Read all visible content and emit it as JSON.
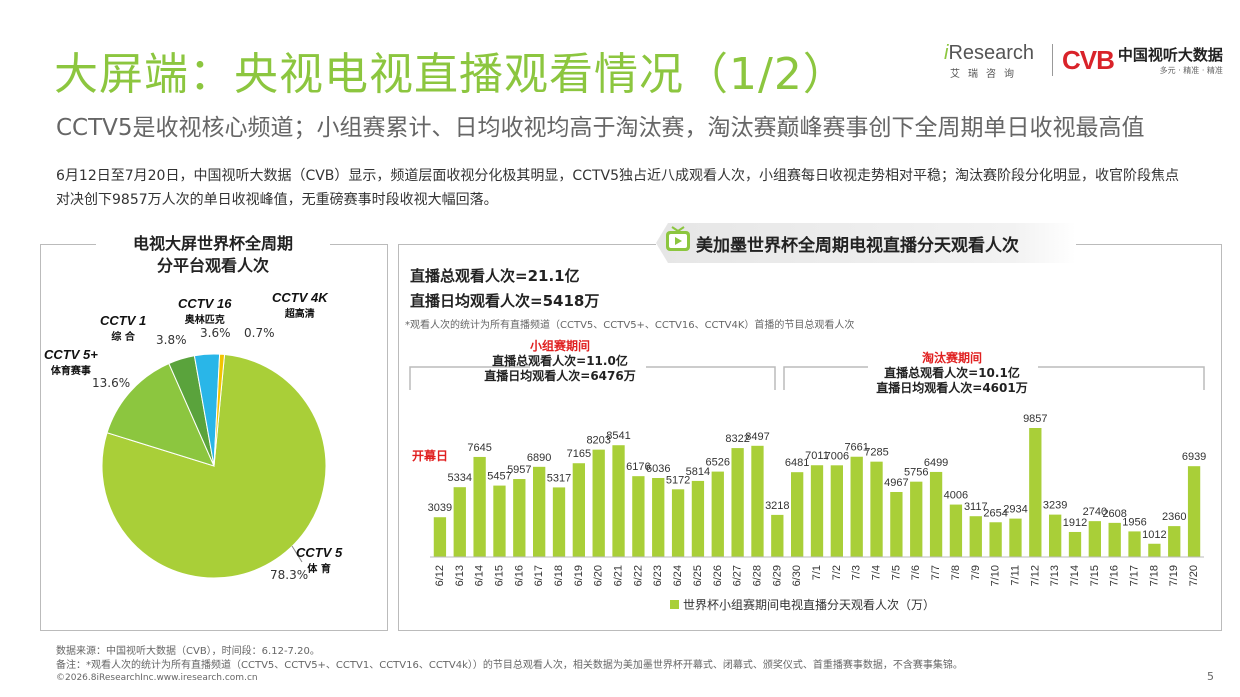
{
  "header": {
    "title": "大屏端：央视电视直播观看情况（1/2）",
    "subtitle": "CCTV5是收视核心频道；小组赛累计、日均收视均高于淘汰赛，淘汰赛巅峰赛事创下全周期单日收视最高值",
    "intro": "6月12日至7月20日，中国视听大数据（CVB）显示，频道层面收视分化极其明显，CCTV5独占近八成观看人次，小组赛每日收视走势相对平稳；淘汰赛阶段分化明显，收官阶段焦点对决创下9857万人次的单日收视峰值，无重磅赛事时段收视大幅回落。"
  },
  "logos": {
    "iresearch_i": "i",
    "iresearch_word": "Research",
    "iresearch_sub": "艾瑞咨询",
    "cvb_mark": "CVB",
    "cvb_name": "中国视听大数据",
    "cvb_tag": "多元 · 精准 · 精准"
  },
  "left_panel": {
    "title": "电视大屏世界杯全周期\n分平台观看人次"
  },
  "right_panel": {
    "title": "美加墨世界杯全周期电视直播分天观看人次",
    "total": "直播总观看人次=21.1亿",
    "daily_avg": "直播日均观看人次=5418万",
    "note": "*观看人次的统计为所有直播频道（CCTV5、CCTV5+、CCTV16、CCTV4K）首播的节目总观看人次",
    "group_stage": {
      "label": "小组赛期间",
      "total": "直播总观看人次=11.0亿",
      "avg": "直播日均观看人次=6476万"
    },
    "knockout_stage": {
      "label": "淘汰赛期间",
      "total": "直播总观看人次=10.1亿",
      "avg": "直播日均观看人次=4601万"
    },
    "opening_label": "开幕日"
  },
  "chart_data": [
    {
      "type": "pie",
      "slices": [
        {
          "channel": "CCTV 5",
          "sub": "体 育",
          "value": 78.3,
          "label": "78.3%",
          "color": "#a9cf38"
        },
        {
          "channel": "CCTV 5+",
          "sub": "体育赛事",
          "value": 13.6,
          "label": "13.6%",
          "color": "#8cc63f"
        },
        {
          "channel": "CCTV 1",
          "sub": "综 合",
          "value": 3.8,
          "label": "3.8%",
          "color": "#5aa33c"
        },
        {
          "channel": "CCTV 16",
          "sub": "奥林匹克",
          "value": 3.6,
          "label": "3.6%",
          "color": "#29b6e8"
        },
        {
          "channel": "CCTV 4K",
          "sub": "超高清",
          "value": 0.7,
          "label": "0.7%",
          "color": "#f2c400"
        }
      ]
    },
    {
      "type": "bar",
      "categories": [
        "6/12",
        "6/13",
        "6/14",
        "6/15",
        "6/16",
        "6/17",
        "6/18",
        "6/19",
        "6/20",
        "6/21",
        "6/22",
        "6/23",
        "6/24",
        "6/25",
        "6/26",
        "6/27",
        "6/28",
        "6/29",
        "6/30",
        "7/1",
        "7/2",
        "7/3",
        "7/4",
        "7/5",
        "7/6",
        "7/7",
        "7/8",
        "7/9",
        "7/10",
        "7/11",
        "7/12",
        "7/13",
        "7/14",
        "7/15",
        "7/16",
        "7/17",
        "7/18",
        "7/19",
        "7/20"
      ],
      "values": [
        3039,
        5334,
        7645,
        5457,
        5957,
        6890,
        5317,
        7165,
        8203,
        8541,
        6176,
        6036,
        5172,
        5814,
        6526,
        8322,
        8497,
        3218,
        6481,
        7011,
        7006,
        7661,
        7285,
        4967,
        5756,
        6499,
        4006,
        3117,
        2654,
        2934,
        9857,
        3239,
        1912,
        2740,
        2608,
        1956,
        1012,
        2360,
        6939
      ],
      "legend": "世界杯小组赛期间电视直播分天观看人次（万）",
      "color": "#a9cf38",
      "ylim": [
        0,
        10500
      ]
    }
  ],
  "footer": {
    "source": "数据来源：中国视听大数据（CVB），时间段：6.12-7.20。",
    "remark": "备注：*观看人次的统计为所有直播频道（CCTV5、CCTV5+、CCTV1、CCTV16、CCTV4k））的节目总观看人次，相关数据为美加墨世界杯开幕式、闭幕式、颁奖仪式、首重播赛事数据，不含赛事集锦。",
    "copyright": "©2026.8iResearchInc.www.iresearch.com.cn",
    "page": "5"
  }
}
